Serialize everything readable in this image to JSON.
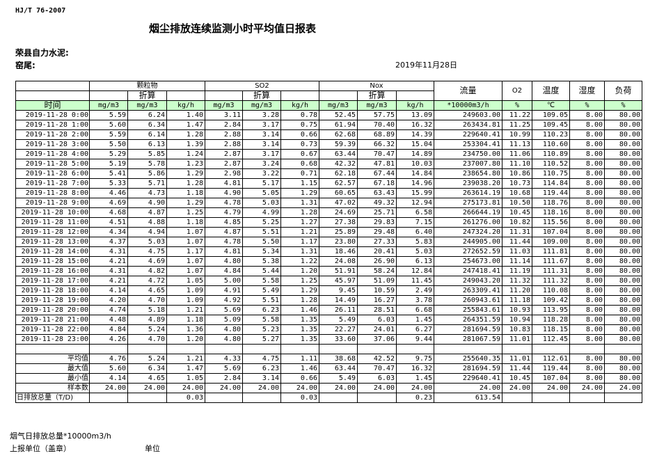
{
  "header": {
    "standard": "HJ/T  76-2007",
    "title": "烟尘排放连续监测小时平均值日报表",
    "company": "荣县自力水泥:",
    "kiln": "窑尾:",
    "date": "2019年11月28日"
  },
  "table": {
    "groups": {
      "particulate": "颗粒物",
      "so2": "SO2",
      "nox": "Nox",
      "flow": "流量",
      "o2": "O2",
      "temp": "温度",
      "humidity": "湿度",
      "load": "负荷"
    },
    "converted_label": "折算",
    "time_label": "时间",
    "units": [
      "mg/m3",
      "mg/m3",
      "kg/h",
      "mg/m3",
      "mg/m3",
      "kg/h",
      "mg/m3",
      "mg/m3",
      "kg/h",
      "*10000m3/h",
      "%",
      "℃",
      "%",
      "%"
    ],
    "rows": [
      [
        "2019-11-28 0:00",
        "5.59",
        "6.24",
        "1.40",
        "3.11",
        "3.28",
        "0.78",
        "52.45",
        "57.75",
        "13.09",
        "249603.00",
        "11.22",
        "109.05",
        "8.00",
        "80.00"
      ],
      [
        "2019-11-28 1:00",
        "5.60",
        "6.34",
        "1.47",
        "2.84",
        "3.17",
        "0.75",
        "61.94",
        "70.40",
        "16.32",
        "263434.81",
        "11.25",
        "109.45",
        "8.00",
        "80.00"
      ],
      [
        "2019-11-28 2:00",
        "5.59",
        "6.14",
        "1.28",
        "2.88",
        "3.14",
        "0.66",
        "62.68",
        "68.89",
        "14.39",
        "229640.41",
        "10.99",
        "110.23",
        "8.00",
        "80.00"
      ],
      [
        "2019-11-28 3:00",
        "5.50",
        "6.13",
        "1.39",
        "2.88",
        "3.14",
        "0.73",
        "59.39",
        "66.32",
        "15.04",
        "253304.41",
        "11.13",
        "110.60",
        "8.00",
        "80.00"
      ],
      [
        "2019-11-28 4:00",
        "5.29",
        "5.85",
        "1.24",
        "2.87",
        "3.17",
        "0.67",
        "63.44",
        "70.47",
        "14.89",
        "234750.00",
        "11.06",
        "110.89",
        "8.00",
        "80.00"
      ],
      [
        "2019-11-28 5:00",
        "5.19",
        "5.78",
        "1.23",
        "2.87",
        "3.24",
        "0.68",
        "42.32",
        "47.81",
        "10.03",
        "237007.80",
        "11.10",
        "110.52",
        "8.00",
        "80.00"
      ],
      [
        "2019-11-28 6:00",
        "5.41",
        "5.86",
        "1.29",
        "2.98",
        "3.22",
        "0.71",
        "62.18",
        "67.44",
        "14.84",
        "238654.80",
        "10.86",
        "110.75",
        "8.00",
        "80.00"
      ],
      [
        "2019-11-28 7:00",
        "5.33",
        "5.71",
        "1.28",
        "4.81",
        "5.17",
        "1.15",
        "62.57",
        "67.18",
        "14.96",
        "239038.20",
        "10.73",
        "114.84",
        "8.00",
        "80.00"
      ],
      [
        "2019-11-28 8:00",
        "4.46",
        "4.73",
        "1.18",
        "4.90",
        "5.05",
        "1.29",
        "60.65",
        "63.43",
        "15.99",
        "263614.19",
        "10.68",
        "119.44",
        "8.00",
        "80.00"
      ],
      [
        "2019-11-28 9:00",
        "4.69",
        "4.90",
        "1.29",
        "4.78",
        "5.03",
        "1.31",
        "47.02",
        "49.32",
        "12.94",
        "275173.81",
        "10.50",
        "118.76",
        "8.00",
        "80.00"
      ],
      [
        "2019-11-28 10:00",
        "4.68",
        "4.87",
        "1.25",
        "4.79",
        "4.99",
        "1.28",
        "24.69",
        "25.71",
        "6.58",
        "266644.19",
        "10.45",
        "118.16",
        "8.00",
        "80.00"
      ],
      [
        "2019-11-28 11:00",
        "4.51",
        "4.88",
        "1.18",
        "4.85",
        "5.25",
        "1.27",
        "27.38",
        "29.83",
        "7.15",
        "261276.00",
        "10.82",
        "115.56",
        "8.00",
        "80.00"
      ],
      [
        "2019-11-28 12:00",
        "4.34",
        "4.94",
        "1.07",
        "4.87",
        "5.51",
        "1.21",
        "25.89",
        "29.48",
        "6.40",
        "247324.20",
        "11.31",
        "107.04",
        "8.00",
        "80.00"
      ],
      [
        "2019-11-28 13:00",
        "4.37",
        "5.03",
        "1.07",
        "4.78",
        "5.50",
        "1.17",
        "23.80",
        "27.33",
        "5.83",
        "244905.00",
        "11.44",
        "109.00",
        "8.00",
        "80.00"
      ],
      [
        "2019-11-28 14:00",
        "4.31",
        "4.75",
        "1.17",
        "4.81",
        "5.34",
        "1.31",
        "18.46",
        "20.41",
        "5.03",
        "272652.59",
        "11.03",
        "111.81",
        "8.00",
        "80.00"
      ],
      [
        "2019-11-28 15:00",
        "4.21",
        "4.69",
        "1.07",
        "4.80",
        "5.38",
        "1.22",
        "24.08",
        "26.90",
        "6.13",
        "254673.00",
        "11.14",
        "111.67",
        "8.00",
        "80.00"
      ],
      [
        "2019-11-28 16:00",
        "4.31",
        "4.82",
        "1.07",
        "4.84",
        "5.44",
        "1.20",
        "51.91",
        "58.24",
        "12.84",
        "247418.41",
        "11.19",
        "111.31",
        "8.00",
        "80.00"
      ],
      [
        "2019-11-28 17:00",
        "4.21",
        "4.72",
        "1.05",
        "5.00",
        "5.58",
        "1.25",
        "45.97",
        "51.09",
        "11.45",
        "249043.20",
        "11.32",
        "111.32",
        "8.00",
        "80.00"
      ],
      [
        "2019-11-28 18:00",
        "4.14",
        "4.65",
        "1.09",
        "4.91",
        "5.49",
        "1.29",
        "9.45",
        "10.59",
        "2.49",
        "263309.41",
        "11.20",
        "110.08",
        "8.00",
        "80.00"
      ],
      [
        "2019-11-28 19:00",
        "4.20",
        "4.70",
        "1.09",
        "4.92",
        "5.51",
        "1.28",
        "14.49",
        "16.27",
        "3.78",
        "260943.61",
        "11.18",
        "109.42",
        "8.00",
        "80.00"
      ],
      [
        "2019-11-28 20:00",
        "4.74",
        "5.18",
        "1.21",
        "5.69",
        "6.23",
        "1.46",
        "26.11",
        "28.51",
        "6.68",
        "255843.61",
        "10.93",
        "113.95",
        "8.00",
        "80.00"
      ],
      [
        "2019-11-28 21:00",
        "4.48",
        "4.89",
        "1.18",
        "5.09",
        "5.58",
        "1.35",
        "5.49",
        "6.03",
        "1.45",
        "264351.59",
        "10.94",
        "118.28",
        "8.00",
        "80.00"
      ],
      [
        "2019-11-28 22:00",
        "4.84",
        "5.24",
        "1.36",
        "4.80",
        "5.23",
        "1.35",
        "22.27",
        "24.01",
        "6.27",
        "281694.59",
        "10.83",
        "118.15",
        "8.00",
        "80.00"
      ],
      [
        "2019-11-28 23:00",
        "4.26",
        "4.70",
        "1.20",
        "4.80",
        "5.27",
        "1.35",
        "33.60",
        "37.06",
        "9.44",
        "281067.59",
        "11.01",
        "112.45",
        "8.00",
        "80.00"
      ]
    ],
    "stats": [
      [
        "平均值",
        "4.76",
        "5.24",
        "1.21",
        "4.33",
        "4.75",
        "1.11",
        "38.68",
        "42.52",
        "9.75",
        "255640.35",
        "11.01",
        "112.61",
        "8.00",
        "80.00"
      ],
      [
        "最大值",
        "5.60",
        "6.34",
        "1.47",
        "5.69",
        "6.23",
        "1.46",
        "63.44",
        "70.47",
        "16.32",
        "281694.59",
        "11.44",
        "119.44",
        "8.00",
        "80.00"
      ],
      [
        "最小值",
        "4.14",
        "4.65",
        "1.05",
        "2.84",
        "3.14",
        "0.66",
        "5.49",
        "6.03",
        "1.45",
        "229640.41",
        "10.45",
        "107.04",
        "8.00",
        "80.00"
      ],
      [
        "样本数",
        "24.00",
        "24.00",
        "24.00",
        "24.00",
        "24.00",
        "24.00",
        "24.00",
        "24.00",
        "24.00",
        "24.00",
        "24.00",
        "24.00",
        "24.00",
        "24.00"
      ],
      [
        "日排放总量（T/D)",
        "",
        "",
        "0.03",
        "",
        "",
        "0.03",
        "",
        "",
        "0.23",
        "613.54",
        "",
        "",
        "",
        ""
      ]
    ]
  },
  "footer": {
    "flue_total": "烟气日排放总量*10000m3/h",
    "reporting_unit": "上报单位（盖章）",
    "unit": "单位"
  }
}
